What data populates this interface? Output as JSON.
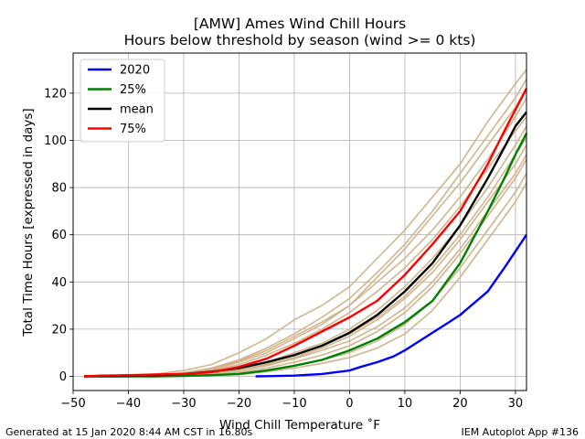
{
  "chart_data": {
    "type": "line",
    "title": "[AMW] Ames Wind Chill Hours",
    "subtitle": "Hours below threshold by season (wind >= 0 kts)",
    "xlabel": "Wind Chill Temperature ˚F",
    "ylabel": "Total Time Hours [expressed in days]",
    "xlim": [
      -50,
      32
    ],
    "ylim": [
      -6,
      137
    ],
    "xticks": [
      -50,
      -40,
      -30,
      -20,
      -10,
      0,
      10,
      20,
      30
    ],
    "xtick_labels": [
      "−50",
      "−40",
      "−30",
      "−20",
      "−10",
      "0",
      "10",
      "20",
      "30"
    ],
    "yticks": [
      0,
      20,
      40,
      60,
      80,
      100,
      120
    ],
    "ytick_labels": [
      "0",
      "20",
      "40",
      "60",
      "80",
      "100",
      "120"
    ],
    "grid": true,
    "legend_position": "top-left",
    "background_series_color": "#d2b48c",
    "background_series": [
      {
        "x": [
          -48,
          -40,
          -35,
          -30,
          -25,
          -20,
          -15,
          -10,
          -5,
          0,
          5,
          10,
          15,
          20,
          25,
          30,
          32
        ],
        "values": [
          0,
          0.2,
          0.6,
          1.5,
          3.5,
          7,
          12,
          18,
          25,
          33,
          44,
          56,
          70,
          86,
          102,
          118,
          126
        ]
      },
      {
        "x": [
          -48,
          -40,
          -35,
          -30,
          -25,
          -20,
          -15,
          -10,
          -5,
          0,
          5,
          10,
          15,
          20,
          25,
          30,
          32
        ],
        "values": [
          0,
          0.2,
          0.5,
          1.2,
          2.8,
          6,
          10,
          16,
          22,
          30,
          40,
          50,
          62,
          76,
          92,
          110,
          118
        ]
      },
      {
        "x": [
          -48,
          -40,
          -35,
          -30,
          -25,
          -20,
          -15,
          -10,
          -5,
          0,
          5,
          10,
          15,
          20,
          25,
          30,
          32
        ],
        "values": [
          0,
          0.4,
          1,
          2.5,
          5,
          10,
          16,
          24,
          30,
          38,
          50,
          62,
          76,
          90,
          108,
          124,
          130
        ]
      },
      {
        "x": [
          -48,
          -40,
          -35,
          -30,
          -25,
          -20,
          -15,
          -10,
          -5,
          0,
          5,
          10,
          15,
          20,
          25,
          30,
          32
        ],
        "values": [
          0,
          0.1,
          0.3,
          0.8,
          1.8,
          3.5,
          6,
          10,
          14,
          20,
          28,
          38,
          50,
          64,
          80,
          98,
          106
        ]
      },
      {
        "x": [
          -48,
          -40,
          -35,
          -30,
          -25,
          -20,
          -15,
          -10,
          -5,
          0,
          5,
          10,
          15,
          20,
          25,
          30,
          32
        ],
        "values": [
          0,
          0.1,
          0.2,
          0.6,
          1.5,
          3,
          5,
          8,
          12,
          17,
          24,
          33,
          44,
          58,
          74,
          90,
          98
        ]
      },
      {
        "x": [
          -48,
          -40,
          -35,
          -30,
          -25,
          -20,
          -15,
          -10,
          -5,
          0,
          5,
          10,
          15,
          20,
          25,
          30,
          32
        ],
        "values": [
          0,
          0,
          0.1,
          0.3,
          0.8,
          1.8,
          3.5,
          6,
          9,
          13,
          19,
          27,
          38,
          52,
          68,
          84,
          92
        ]
      },
      {
        "x": [
          -48,
          -40,
          -35,
          -30,
          -25,
          -20,
          -15,
          -10,
          -5,
          0,
          5,
          10,
          15,
          20,
          25,
          30,
          32
        ],
        "values": [
          0,
          0,
          0.1,
          0.2,
          0.5,
          1.2,
          2.5,
          4.5,
          7,
          10,
          15,
          22,
          32,
          46,
          62,
          78,
          86
        ]
      },
      {
        "x": [
          -48,
          -40,
          -35,
          -30,
          -25,
          -20,
          -15,
          -10,
          -5,
          0,
          5,
          10,
          15,
          20,
          25,
          30,
          32
        ],
        "values": [
          0,
          0,
          0,
          0.1,
          0.3,
          0.8,
          2,
          3.5,
          5.5,
          8,
          12,
          18,
          28,
          42,
          58,
          74,
          82
        ]
      },
      {
        "x": [
          -48,
          -40,
          -35,
          -30,
          -25,
          -20,
          -15,
          -10,
          -5,
          0,
          5,
          10,
          15,
          20,
          25,
          30,
          32
        ],
        "values": [
          0,
          0.1,
          0.3,
          1,
          2.4,
          5,
          9,
          14,
          20,
          27,
          36,
          46,
          58,
          72,
          88,
          104,
          110
        ]
      },
      {
        "x": [
          -48,
          -40,
          -35,
          -30,
          -25,
          -20,
          -15,
          -10,
          -5,
          0,
          5,
          10,
          15,
          20,
          25,
          30,
          32
        ],
        "values": [
          0,
          0,
          0.2,
          0.5,
          1.2,
          2.5,
          4.5,
          7.5,
          11,
          15,
          21,
          29,
          40,
          54,
          70,
          86,
          94
        ]
      },
      {
        "x": [
          -48,
          -40,
          -35,
          -30,
          -25,
          -20,
          -15,
          -10,
          -5,
          0,
          5,
          10,
          15,
          20,
          25,
          30,
          32
        ],
        "values": [
          0,
          0.1,
          0.3,
          0.7,
          1.6,
          3.2,
          5.5,
          9,
          13,
          18,
          25,
          34,
          46,
          60,
          76,
          94,
          101
        ]
      },
      {
        "x": [
          -48,
          -40,
          -35,
          -30,
          -25,
          -20,
          -15,
          -10,
          -5,
          0,
          5,
          10,
          15,
          20,
          25,
          30,
          32
        ],
        "values": [
          0,
          0.2,
          0.5,
          1.3,
          3,
          6.5,
          11,
          17,
          23,
          30,
          42,
          54,
          68,
          82,
          98,
          114,
          122
        ]
      }
    ],
    "series": [
      {
        "name": "2020",
        "color": "#0000ff",
        "x": [
          -17,
          -15,
          -10,
          -5,
          0,
          2,
          5,
          8,
          10,
          12,
          15,
          18,
          20,
          22,
          25,
          28,
          30,
          32
        ],
        "values": [
          0,
          0.1,
          0.3,
          1,
          2.5,
          4,
          6,
          8.5,
          11,
          14,
          18.5,
          23,
          26,
          30,
          36,
          46,
          53,
          60
        ]
      },
      {
        "name": "25%",
        "color": "#008000",
        "x": [
          -48,
          -45,
          -40,
          -35,
          -30,
          -25,
          -20,
          -15,
          -10,
          -5,
          0,
          5,
          10,
          15,
          20,
          25,
          28,
          30,
          32
        ],
        "values": [
          0,
          0,
          0,
          0,
          0.2,
          0.5,
          1,
          2.5,
          4.5,
          7,
          11,
          16,
          23,
          32,
          48,
          70,
          84,
          94,
          103
        ]
      },
      {
        "name": "mean",
        "color": "#000000",
        "x": [
          -48,
          -45,
          -40,
          -35,
          -30,
          -25,
          -20,
          -15,
          -10,
          -5,
          0,
          5,
          10,
          15,
          20,
          25,
          28,
          30,
          32
        ],
        "values": [
          0,
          0.1,
          0.2,
          0.5,
          1,
          2,
          3.5,
          6,
          9,
          13,
          18.5,
          26,
          36,
          48,
          64,
          84,
          97,
          106,
          112
        ]
      },
      {
        "name": "75%",
        "color": "#ff0000",
        "x": [
          -48,
          -45,
          -40,
          -35,
          -30,
          -25,
          -20,
          -15,
          -10,
          -5,
          0,
          5,
          10,
          15,
          20,
          25,
          28,
          30,
          32
        ],
        "values": [
          0,
          0.3,
          0.5,
          0.8,
          1,
          1.8,
          4,
          7.5,
          13,
          19,
          25,
          32,
          43,
          56,
          70,
          90,
          104,
          113,
          122
        ]
      }
    ]
  },
  "footer": {
    "left": "Generated at 15 Jan 2020 8:44 AM CST in 16.80s",
    "right": "IEM Autoplot App #136"
  }
}
